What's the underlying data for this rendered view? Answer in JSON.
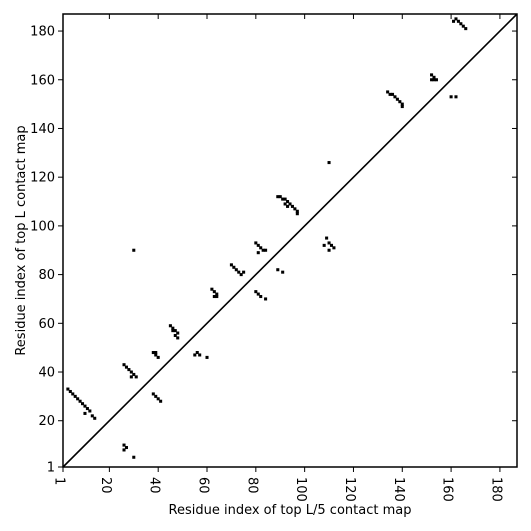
{
  "chart_data": {
    "type": "scatter",
    "title": "",
    "xlabel": "Residue index of top L/5 contact map",
    "ylabel": "Residue index of top L contact map",
    "xlim": [
      1,
      187
    ],
    "ylim": [
      1,
      187
    ],
    "xticks": [
      1,
      20,
      40,
      60,
      80,
      100,
      120,
      140,
      160,
      180
    ],
    "yticks": [
      1,
      20,
      40,
      60,
      80,
      100,
      120,
      140,
      160,
      180
    ],
    "diagonal": true,
    "grid": false,
    "marker_color": "#000000",
    "upper_triangle_points": [
      [
        162,
        185
      ],
      [
        163,
        184
      ],
      [
        164,
        183
      ],
      [
        165,
        182
      ],
      [
        166,
        181
      ],
      [
        161,
        184
      ],
      [
        152,
        162
      ],
      [
        153,
        161
      ],
      [
        152,
        160
      ],
      [
        153,
        160
      ],
      [
        154,
        160
      ],
      [
        134,
        155
      ],
      [
        135,
        154
      ],
      [
        136,
        154
      ],
      [
        137,
        153
      ],
      [
        138,
        152
      ],
      [
        139,
        151
      ],
      [
        140,
        150
      ],
      [
        140,
        149
      ],
      [
        110,
        126
      ],
      [
        89,
        112
      ],
      [
        90,
        112
      ],
      [
        91,
        111
      ],
      [
        92,
        111
      ],
      [
        93,
        110
      ],
      [
        94,
        109
      ],
      [
        95,
        108
      ],
      [
        96,
        107
      ],
      [
        97,
        106
      ],
      [
        97,
        105
      ],
      [
        92,
        109
      ],
      [
        93,
        108
      ],
      [
        80,
        93
      ],
      [
        81,
        92
      ],
      [
        82,
        91
      ],
      [
        83,
        90
      ],
      [
        84,
        90
      ],
      [
        81,
        89
      ],
      [
        70,
        84
      ],
      [
        71,
        83
      ],
      [
        72,
        82
      ],
      [
        73,
        81
      ],
      [
        74,
        80
      ],
      [
        75,
        81
      ],
      [
        62,
        74
      ],
      [
        63,
        73
      ],
      [
        64,
        72
      ],
      [
        63,
        71
      ],
      [
        64,
        71
      ],
      [
        45,
        59
      ],
      [
        46,
        58
      ],
      [
        47,
        57
      ],
      [
        48,
        56
      ],
      [
        47,
        55
      ],
      [
        48,
        54
      ],
      [
        46,
        57
      ],
      [
        38,
        48
      ],
      [
        39,
        47
      ],
      [
        40,
        46
      ],
      [
        39,
        48
      ],
      [
        26,
        43
      ],
      [
        27,
        42
      ],
      [
        28,
        41
      ],
      [
        29,
        40
      ],
      [
        30,
        39
      ],
      [
        31,
        38
      ],
      [
        29,
        38
      ],
      [
        30,
        90
      ],
      [
        3,
        33
      ],
      [
        4,
        32
      ],
      [
        5,
        31
      ],
      [
        6,
        30
      ],
      [
        7,
        29
      ],
      [
        8,
        28
      ],
      [
        9,
        27
      ],
      [
        10,
        26
      ],
      [
        11,
        25
      ],
      [
        12,
        24
      ],
      [
        13,
        22
      ],
      [
        14,
        21
      ],
      [
        10,
        23
      ]
    ],
    "lower_triangle_points": [
      [
        160,
        153
      ],
      [
        162,
        153
      ],
      [
        109,
        95
      ],
      [
        110,
        93
      ],
      [
        111,
        92
      ],
      [
        112,
        91
      ],
      [
        108,
        92
      ],
      [
        110,
        90
      ],
      [
        89,
        82
      ],
      [
        91,
        81
      ],
      [
        80,
        73
      ],
      [
        81,
        72
      ],
      [
        82,
        71
      ],
      [
        84,
        70
      ],
      [
        56,
        48
      ],
      [
        57,
        47
      ],
      [
        55,
        47
      ],
      [
        60,
        46
      ],
      [
        38,
        31
      ],
      [
        39,
        30
      ],
      [
        40,
        29
      ],
      [
        41,
        28
      ],
      [
        26,
        10
      ],
      [
        27,
        9
      ],
      [
        26,
        8
      ],
      [
        30,
        5
      ]
    ]
  }
}
